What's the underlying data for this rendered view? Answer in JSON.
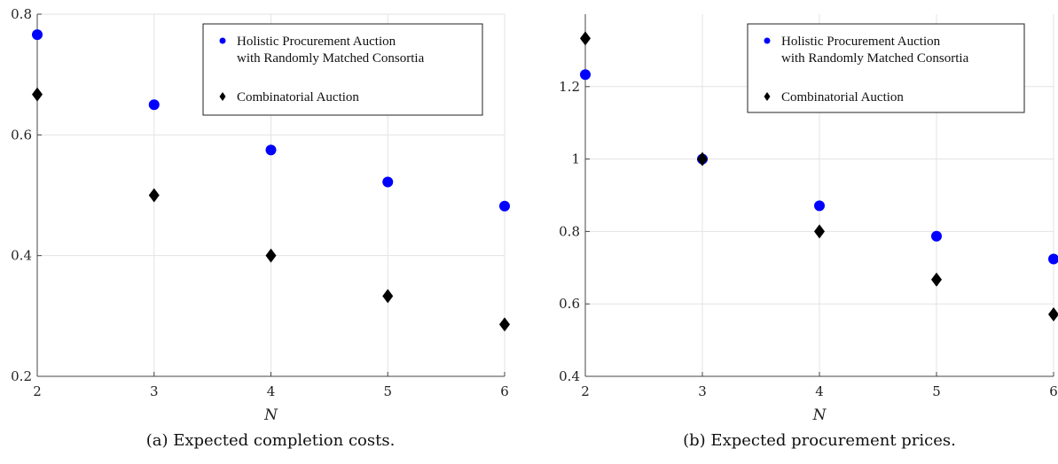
{
  "chart_data": [
    {
      "type": "scatter",
      "caption": "(a) Expected completion costs.",
      "xlabel": "N",
      "ylabel": "",
      "xlim": [
        2,
        6
      ],
      "ylim": [
        0.2,
        0.8
      ],
      "xticks": [
        "2",
        "3",
        "4",
        "5",
        "6"
      ],
      "yticks": [
        "0.2",
        "0.4",
        "0.6",
        "0.8"
      ],
      "grid": true,
      "legend_position": "top-right",
      "series": [
        {
          "name": "Holistic Procurement Auction with Randomly Matched Consortia",
          "name_lines": [
            "Holistic Procurement Auction",
            "with Randomly Matched Consortia"
          ],
          "marker": "circle",
          "color": "#0000ff",
          "x": [
            2,
            3,
            4,
            5,
            6
          ],
          "y": [
            0.766,
            0.65,
            0.575,
            0.522,
            0.482
          ]
        },
        {
          "name": "Combinatorial Auction",
          "name_lines": [
            "Combinatorial Auction"
          ],
          "marker": "diamond",
          "color": "#000000",
          "x": [
            2,
            3,
            4,
            5,
            6
          ],
          "y": [
            0.667,
            0.5,
            0.4,
            0.333,
            0.286
          ]
        }
      ]
    },
    {
      "type": "scatter",
      "caption": "(b) Expected procurement prices.",
      "xlabel": "N",
      "ylabel": "",
      "xlim": [
        2,
        6
      ],
      "ylim": [
        0.4,
        1.4
      ],
      "xticks": [
        "2",
        "3",
        "4",
        "5",
        "6"
      ],
      "yticks": [
        "0.4",
        "0.6",
        "0.8",
        "1",
        "1.2"
      ],
      "grid": true,
      "legend_position": "top-right",
      "series": [
        {
          "name": "Holistic Procurement Auction with Randomly Matched Consortia",
          "name_lines": [
            "Holistic Procurement Auction",
            "with Randomly Matched Consortia"
          ],
          "marker": "circle",
          "color": "#0000ff",
          "x": [
            2,
            3,
            4,
            5,
            6
          ],
          "y": [
            1.233,
            1.0,
            0.871,
            0.787,
            0.724
          ]
        },
        {
          "name": "Combinatorial Auction",
          "name_lines": [
            "Combinatorial Auction"
          ],
          "marker": "diamond",
          "color": "#000000",
          "x": [
            2,
            3,
            4,
            5,
            6
          ],
          "y": [
            1.333,
            1.0,
            0.8,
            0.667,
            0.571
          ]
        }
      ]
    }
  ]
}
